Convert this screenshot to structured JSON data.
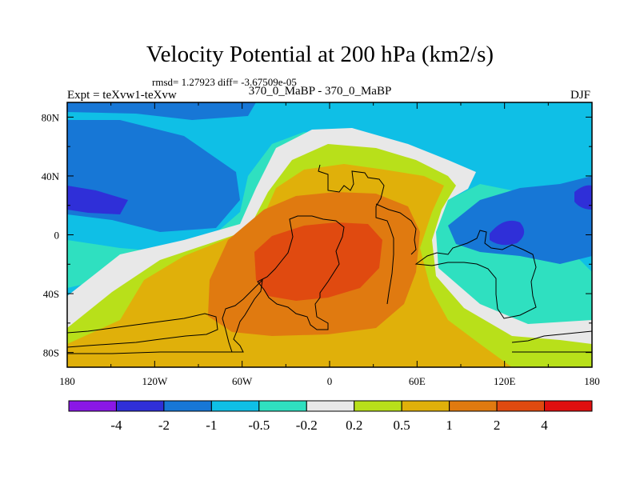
{
  "chart_data": {
    "type": "heatmap",
    "title": "Velocity Potential at 200 hPa (km2/s)",
    "stats_label": "rmsd= 1.27923 diff= -3.67509e-05",
    "experiment_label": "Expt = teXvw1-teXvw",
    "experiment_name": "370_0_MaBP - 370_0_MaBP",
    "season": "DJF",
    "x_ticks": [
      "180",
      "120W",
      "60W",
      "0",
      "60E",
      "120E",
      "180"
    ],
    "y_ticks": [
      "80N",
      "40N",
      "0",
      "40S",
      "80S"
    ],
    "xlim": [
      -180,
      180
    ],
    "ylim": [
      -90,
      90
    ],
    "contour_levels": [
      "-4",
      "-2",
      "-1",
      "-0.5",
      "-0.2",
      "0.2",
      "0.5",
      "1",
      "2",
      "4"
    ],
    "colors": [
      "#8a17e6",
      "#2f2fd8",
      "#1777d6",
      "#0fbfe6",
      "#2fe0c0",
      "#e8e8e8",
      "#b8e01a",
      "#e0b00a",
      "#e07a10",
      "#e04a10",
      "#e00f0f"
    ],
    "max_center": {
      "lon": -20,
      "lat": -15,
      "value": 2.5
    },
    "min_centers": [
      {
        "lon": 160,
        "lat": 30,
        "value": -2.5
      },
      {
        "lon": 125,
        "lat": 0,
        "value": -2.2
      },
      {
        "lon": -155,
        "lat": 30,
        "value": -2.2
      }
    ]
  }
}
